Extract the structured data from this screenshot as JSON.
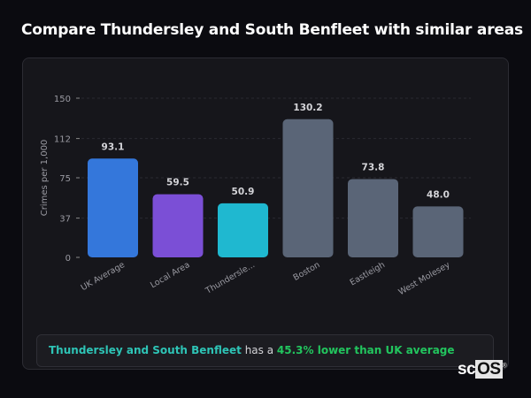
{
  "title": "Compare Thundersley and South Benfleet with similar areas",
  "chart_data": {
    "type": "bar",
    "ylabel": "Crimes per 1,000",
    "ylim": [
      0,
      150
    ],
    "yticks": [
      0,
      37,
      75,
      112,
      150
    ],
    "grid": true,
    "categories": [
      "UK Average",
      "Local Area",
      "Thundersle...",
      "Boston",
      "Eastleigh",
      "West Molesey"
    ],
    "values": [
      93.1,
      59.5,
      50.9,
      130.2,
      73.8,
      48.0
    ],
    "labels": [
      "93.1",
      "59.5",
      "50.9",
      "130.2",
      "73.8",
      "48.0"
    ],
    "colors": [
      "#3477db",
      "#7b4fd6",
      "#1fb8d0",
      "#5a6577",
      "#5a6577",
      "#5a6577"
    ]
  },
  "footer": {
    "place": "Thundersley and South Benfleet",
    "middle": " has a ",
    "highlight": "45.3% lower than UK average"
  },
  "logo": {
    "text_a": "sc",
    "text_b": "OS",
    "mark": "®"
  }
}
